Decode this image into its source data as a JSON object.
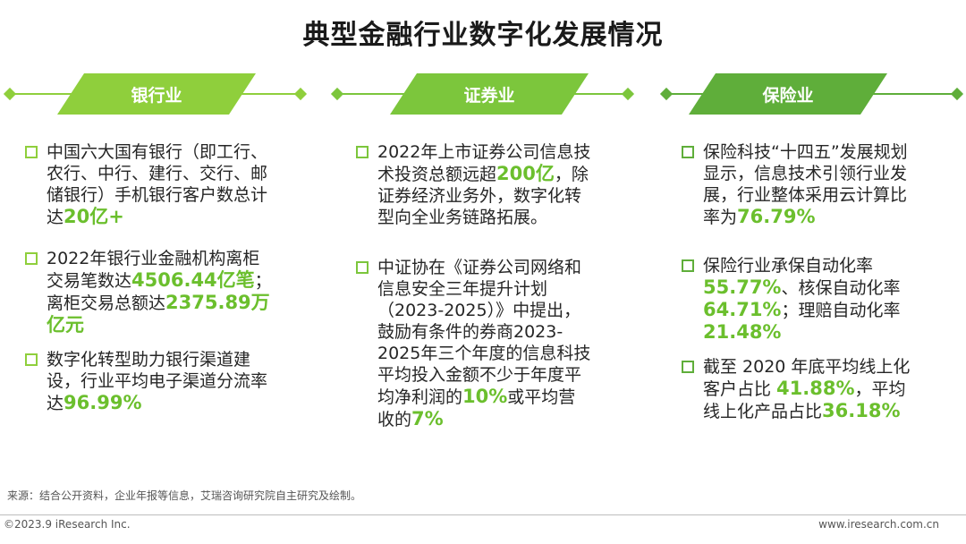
{
  "title": "典型金融行业数字化发展情况",
  "colors": {
    "banking": "#8fcf3c",
    "securities": "#7cc63c",
    "insurance": "#5fae3a",
    "accent": "#6bbf2d"
  },
  "columns": [
    {
      "header": "银行业",
      "bullets": [
        {
          "parts": [
            "中国六大国有银行（即工行、农行、中行、建行、交行、邮储银行）手机银行客户数总计达",
            "20亿+"
          ]
        },
        {
          "parts": [
            "2022年银行业金融机构离柜交易笔数达",
            "4506.44亿笔",
            "；离柜交易总额达",
            "2375.89万亿元"
          ]
        },
        {
          "parts": [
            "数字化转型助力银行渠道建设，行业平均电子渠道分流率达",
            "96.99%"
          ]
        }
      ]
    },
    {
      "header": "证券业",
      "bullets": [
        {
          "parts": [
            "2022年上市证券公司信息技术投资总额远超",
            "200亿",
            "，除证券经济业务外，数字化转型向全业务链路拓展。"
          ]
        },
        {
          "parts": [
            "中证协在《证券公司网络和信息安全三年提升计划（2023-2025）》中提出，鼓励有条件的券商2023-2025年三个年度的信息科技平均投入金额不少于年度平均净利润的",
            "10%",
            "或平均营收的",
            "7%"
          ]
        }
      ]
    },
    {
      "header": "保险业",
      "bullets": [
        {
          "parts": [
            "保险科技“十四五”发展规划显示，信息技术引领行业发展，行业整体采用云计算比率为",
            "76.79%"
          ]
        },
        {
          "parts": [
            "保险行业承保自动化率",
            "55.77%",
            "、核保自动化率",
            "64.71%",
            "；理赔自动化率",
            "21.48%"
          ]
        },
        {
          "parts": [
            "截至 2020 年底平均线上化客户占比 ",
            "41.88%",
            "，平均线上化产品占比",
            "36.18%"
          ]
        }
      ]
    }
  ],
  "source": "来源：结合公开资料，企业年报等信息，艾瑞咨询研究院自主研究及绘制。",
  "copyright": "©2023.9 iResearch Inc.",
  "website": "www.iresearch.com.cn"
}
